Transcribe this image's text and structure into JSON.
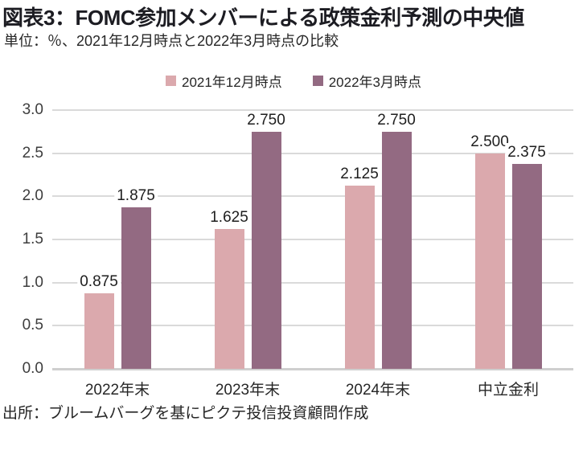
{
  "header": {
    "title": "図表3：FOMC参加メンバーによる政策金利予測の中央値",
    "subtitle": "単位：％、2021年12月時点と2022年3月時点の比較"
  },
  "footer": {
    "source": "出所：ブルームバーグを基にピクテ投信投資顧問作成"
  },
  "colors": {
    "series1": "#DBA9AD",
    "series2": "#936A82",
    "gridline": "#DADADA",
    "baseline": "#CFCFCF",
    "label_text": "#1E1E1E"
  },
  "chart_data": {
    "type": "bar",
    "title": "図表3：FOMC参加メンバーによる政策金利予測の中央値",
    "subtitle": "単位：％、2021年12月時点と2022年3月時点の比較",
    "categories": [
      "2022年末",
      "2023年末",
      "2024年末",
      "中立金利"
    ],
    "series": [
      {
        "name": "2021年12月時点",
        "color": "#DBA9AD",
        "values": [
          0.875,
          1.625,
          2.125,
          2.5
        ]
      },
      {
        "name": "2022年3月時点",
        "color": "#936A82",
        "values": [
          1.875,
          2.75,
          2.75,
          2.375
        ]
      }
    ],
    "value_label_decimals": 3,
    "xlabel": "",
    "ylabel": "",
    "ylim": [
      0,
      3.0
    ],
    "ytick_step": 0.5,
    "ytick_labels": [
      "0.0",
      "0.5",
      "1.0",
      "1.5",
      "2.0",
      "2.5",
      "3.0"
    ],
    "grid": true,
    "legend_position": "top-center",
    "data_labels": true
  }
}
